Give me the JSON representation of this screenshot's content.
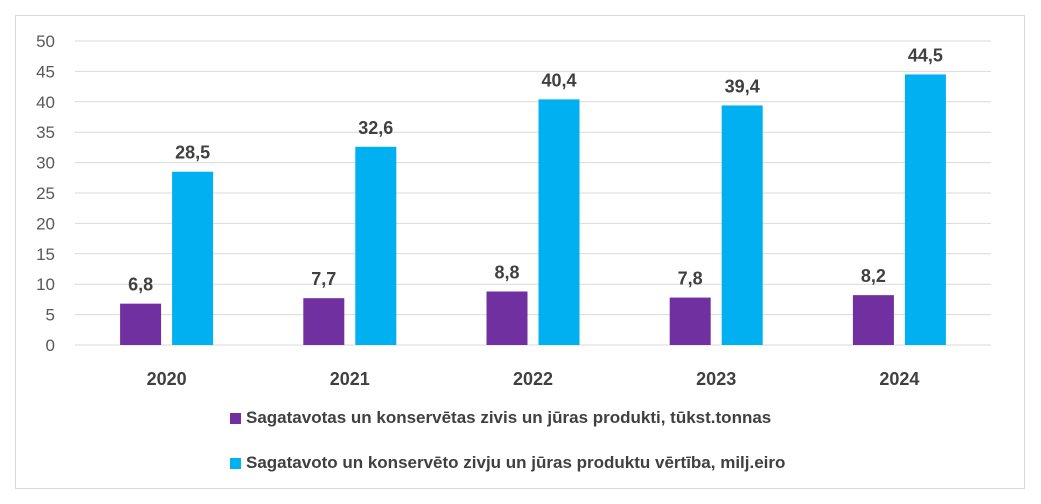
{
  "chart_data": {
    "type": "bar",
    "categories": [
      "2020",
      "2021",
      "2022",
      "2023",
      "2024"
    ],
    "series": [
      {
        "name": "Sagatavotas un konservētas zivis un jūras produkti, tūkst.tonnas",
        "values": [
          6.8,
          7.7,
          8.8,
          7.8,
          8.2
        ],
        "labels": [
          "6,8",
          "7,7",
          "8,8",
          "7,8",
          "8,2"
        ],
        "color": "#7030a0"
      },
      {
        "name": "Sagatavoto un konservēto zivju un jūras produktu vērtība, milj.eiro",
        "values": [
          28.5,
          32.6,
          40.4,
          39.4,
          44.5
        ],
        "labels": [
          "28,5",
          "32,6",
          "40,4",
          "39,4",
          "44,5"
        ],
        "color": "#00b0f0"
      }
    ],
    "ylim": [
      0,
      50
    ],
    "yticks": [
      0,
      5,
      10,
      15,
      20,
      25,
      30,
      35,
      40,
      45,
      50
    ],
    "grid": true,
    "legend_position": "bottom",
    "title": "",
    "xlabel": "",
    "ylabel": ""
  }
}
